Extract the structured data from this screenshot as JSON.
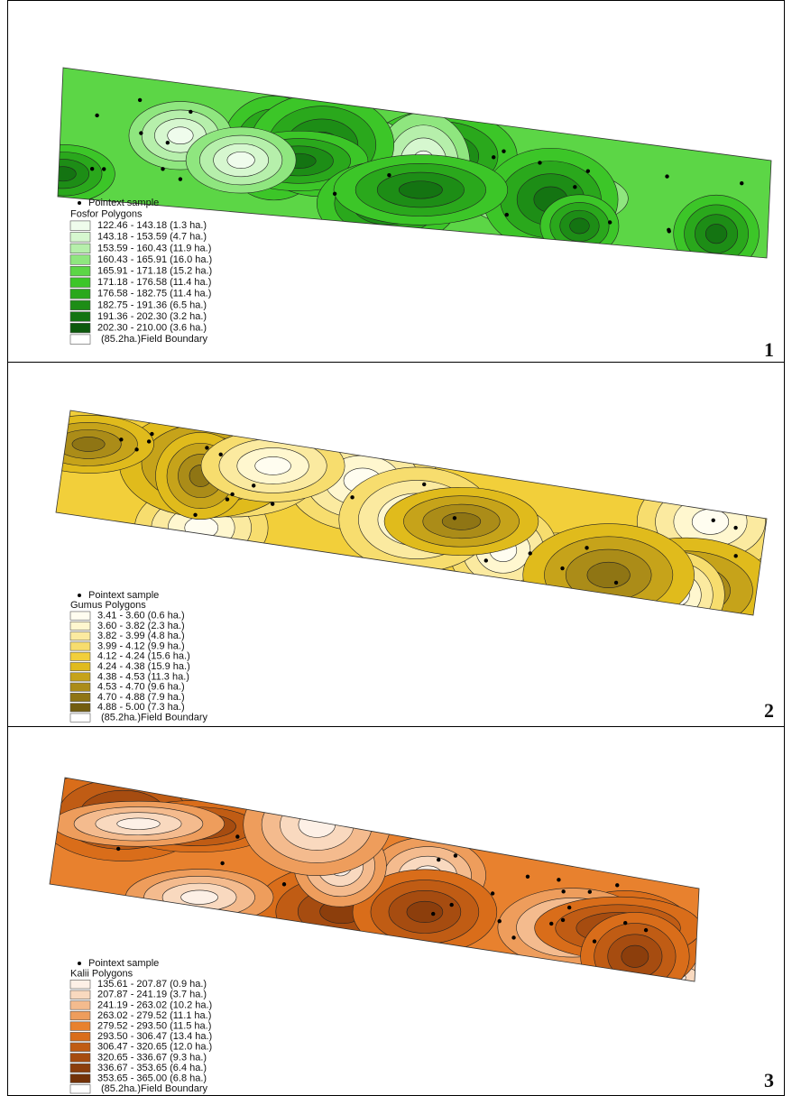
{
  "panels": [
    {
      "point_label": "Pointext sample",
      "legend_title": "Fosfor Polygons",
      "classes": [
        {
          "label": "122.46 - 143.18  (1.3 ha.)",
          "color": "#effcec"
        },
        {
          "label": "143.18 - 153.59  (4.7 ha.)",
          "color": "#d6f7cf"
        },
        {
          "label": "153.59 - 160.43  (11.9 ha.)",
          "color": "#b6efab"
        },
        {
          "label": "160.43 - 165.91  (16.0 ha.)",
          "color": "#8fe67f"
        },
        {
          "label": "165.91 - 171.18  (15.2 ha.)",
          "color": "#5cd646"
        },
        {
          "label": "171.18 - 176.58  (11.4 ha.)",
          "color": "#3cc628"
        },
        {
          "label": "176.58 - 182.75  (11.4 ha.)",
          "color": "#2aa81c"
        },
        {
          "label": "182.75 - 191.36  (6.5 ha.)",
          "color": "#1d8d16"
        },
        {
          "label": "191.36 - 202.30  (3.2 ha.)",
          "color": "#147412"
        },
        {
          "label": "202.30 - 210.00  (3.6 ha.)",
          "color": "#0c5a0c"
        }
      ],
      "boundary_label": "(85.2ha.)Field Boundary",
      "number": "1"
    },
    {
      "point_label": "Pointext sample",
      "legend_title": "Gumus Polygons",
      "classes": [
        {
          "label": "3.41 - 3.60  (0.6 ha.)",
          "color": "#fffdf0"
        },
        {
          "label": "3.60 - 3.82  (2.3 ha.)",
          "color": "#fff7cf"
        },
        {
          "label": "3.82 - 3.99  (4.8 ha.)",
          "color": "#fbeaa0"
        },
        {
          "label": "3.99 - 4.12  (9.9 ha.)",
          "color": "#f7dd6e"
        },
        {
          "label": "4.12 - 4.24  (15.6 ha.)",
          "color": "#f2cf3a"
        },
        {
          "label": "4.24 - 4.38  (15.9 ha.)",
          "color": "#e0bb1c"
        },
        {
          "label": "4.38 - 4.53  (11.3 ha.)",
          "color": "#c6a31a"
        },
        {
          "label": "4.53 - 4.70  (9.6 ha.)",
          "color": "#ab8c18"
        },
        {
          "label": "4.70 - 4.88  (7.9 ha.)",
          "color": "#8f7514"
        },
        {
          "label": "4.88 - 5.00  (7.3 ha.)",
          "color": "#725d10"
        }
      ],
      "boundary_label": "(85.2ha.)Field Boundary",
      "number": "2"
    },
    {
      "point_label": "Pointext sample",
      "legend_title": "Kalii Polygons",
      "classes": [
        {
          "label": "135.61 - 207.87  (0.9 ha.)",
          "color": "#fdf0e6"
        },
        {
          "label": "207.87 - 241.19  (3.7 ha.)",
          "color": "#f9d9bf"
        },
        {
          "label": "241.19 - 263.02  (10.2 ha.)",
          "color": "#f4bb8e"
        },
        {
          "label": "263.02 - 279.52  (11.1 ha.)",
          "color": "#ee9d5c"
        },
        {
          "label": "279.52 - 293.50  (11.5 ha.)",
          "color": "#e8812e"
        },
        {
          "label": "293.50 - 306.47  (13.4 ha.)",
          "color": "#d96d1a"
        },
        {
          "label": "306.47 - 320.65  (12.0 ha.)",
          "color": "#c05c14"
        },
        {
          "label": "320.65 - 336.67  (9.3 ha.)",
          "color": "#a64c10"
        },
        {
          "label": "336.67 - 353.65  (6.4 ha.)",
          "color": "#8c3e0c"
        },
        {
          "label": "353.65 - 365.00  (6.8 ha.)",
          "color": "#733208"
        }
      ],
      "boundary_label": "(85.2ha.)Field Boundary",
      "number": "3"
    }
  ]
}
